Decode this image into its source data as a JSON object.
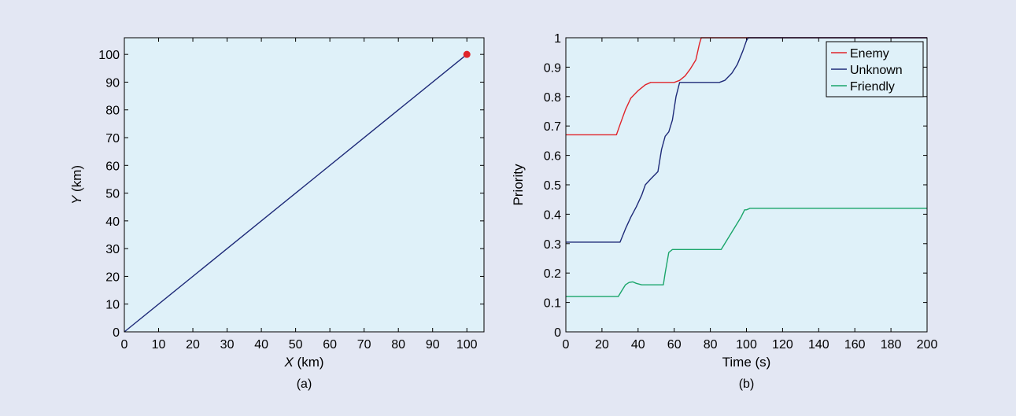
{
  "figure": {
    "background": "#e3e7f3",
    "plot_background": "#dff1f9"
  },
  "chart_data": [
    {
      "type": "scatter",
      "panel_label": "(a)",
      "xlabel": {
        "var": "X",
        "unit": " (km)"
      },
      "ylabel": {
        "var": "Y",
        "unit": " (km)"
      },
      "xlim": [
        0,
        105
      ],
      "ylim": [
        0,
        106
      ],
      "xticks": [
        0,
        10,
        20,
        30,
        40,
        50,
        60,
        70,
        80,
        90,
        100
      ],
      "yticks": [
        0,
        10,
        20,
        30,
        40,
        50,
        60,
        70,
        80,
        90,
        100
      ],
      "grid": false,
      "series": [
        {
          "kind": "line",
          "color": "#1e2a78",
          "x": [
            0,
            100
          ],
          "y": [
            0,
            100
          ]
        },
        {
          "kind": "point",
          "color": "#e0242a",
          "x": [
            100
          ],
          "y": [
            100
          ]
        }
      ]
    },
    {
      "type": "line",
      "panel_label": "(b)",
      "xlabel": "Time (s)",
      "ylabel": "Priority",
      "xlim": [
        0,
        200
      ],
      "ylim": [
        0,
        1
      ],
      "xticks": [
        0,
        20,
        40,
        60,
        80,
        100,
        120,
        140,
        160,
        180,
        200
      ],
      "yticks": [
        0,
        0.1,
        0.2,
        0.3,
        0.4,
        0.5,
        0.6,
        0.7,
        0.8,
        0.9,
        1
      ],
      "grid": false,
      "legend": "top-right",
      "series": [
        {
          "name": "Enemy",
          "color": "#e0242a",
          "x": [
            0,
            28,
            30,
            33,
            36,
            40,
            44,
            47,
            60,
            63,
            66,
            69,
            72,
            74,
            75,
            200
          ],
          "y": [
            0.67,
            0.67,
            0.705,
            0.755,
            0.795,
            0.82,
            0.84,
            0.848,
            0.848,
            0.855,
            0.87,
            0.895,
            0.925,
            0.98,
            1.0,
            1.0
          ]
        },
        {
          "name": "Unknown",
          "color": "#1e2a78",
          "x": [
            0,
            30,
            33,
            36,
            39,
            42,
            44,
            47,
            51,
            53,
            55,
            57,
            59,
            61,
            63,
            70,
            85,
            88,
            92,
            95,
            98,
            100,
            101,
            200
          ],
          "y": [
            0.305,
            0.305,
            0.35,
            0.39,
            0.425,
            0.465,
            0.5,
            0.52,
            0.545,
            0.62,
            0.665,
            0.68,
            0.72,
            0.8,
            0.848,
            0.848,
            0.848,
            0.855,
            0.88,
            0.91,
            0.955,
            0.99,
            1.0,
            1.0
          ]
        },
        {
          "name": "Friendly",
          "color": "#1aa56a",
          "x": [
            0,
            29,
            31,
            33,
            35,
            37,
            39,
            42,
            54,
            55,
            57,
            59,
            62,
            86,
            88,
            91,
            94,
            97,
            99,
            100,
            102,
            200
          ],
          "y": [
            0.12,
            0.12,
            0.14,
            0.16,
            0.168,
            0.17,
            0.165,
            0.16,
            0.16,
            0.2,
            0.27,
            0.28,
            0.28,
            0.28,
            0.3,
            0.33,
            0.36,
            0.39,
            0.415,
            0.415,
            0.42,
            0.42
          ]
        }
      ]
    }
  ]
}
